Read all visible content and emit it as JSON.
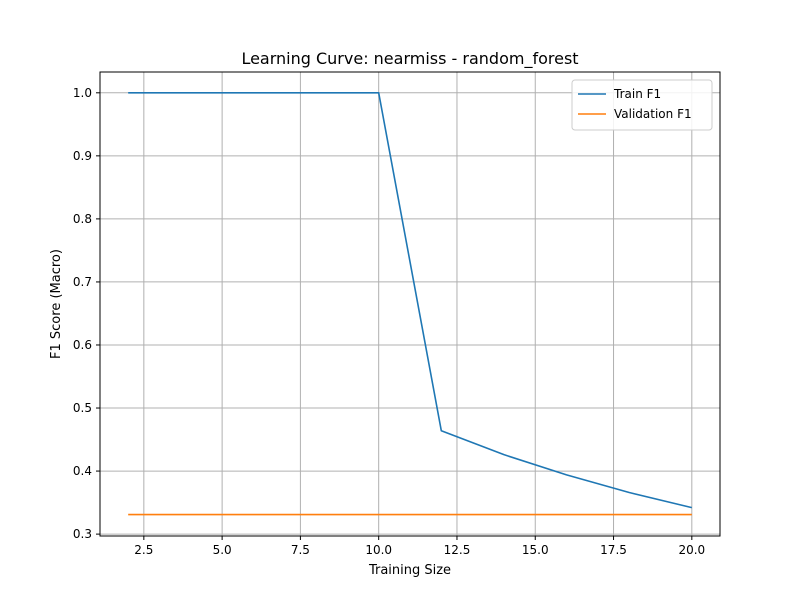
{
  "chart_data": {
    "type": "line",
    "title": "Learning Curve: nearmiss - random_forest",
    "xlabel": "Training Size",
    "ylabel": "F1 Score (Macro)",
    "xlim": [
      1.1,
      20.9
    ],
    "ylim": [
      0.297,
      1.033
    ],
    "xticks": [
      2.5,
      5.0,
      7.5,
      10.0,
      12.5,
      15.0,
      17.5,
      20.0
    ],
    "xtick_labels": [
      "2.5",
      "5.0",
      "7.5",
      "10.0",
      "12.5",
      "15.0",
      "17.5",
      "20.0"
    ],
    "yticks": [
      0.3,
      0.4,
      0.5,
      0.6,
      0.7,
      0.8,
      0.9,
      1.0
    ],
    "ytick_labels": [
      "0.3",
      "0.4",
      "0.5",
      "0.6",
      "0.7",
      "0.8",
      "0.9",
      "1.0"
    ],
    "grid": true,
    "legend_position": "top-right",
    "x": [
      2,
      4,
      6,
      8,
      10,
      12,
      14,
      16,
      18,
      20
    ],
    "series": [
      {
        "name": "Train F1",
        "color": "#1f77b4",
        "values": [
          1.0,
          1.0,
          1.0,
          1.0,
          1.0,
          0.464,
          0.426,
          0.394,
          0.366,
          0.342
        ]
      },
      {
        "name": "Validation F1",
        "color": "#ff7f0e",
        "values": [
          0.331,
          0.331,
          0.331,
          0.331,
          0.331,
          0.331,
          0.331,
          0.331,
          0.331,
          0.331
        ]
      }
    ]
  }
}
